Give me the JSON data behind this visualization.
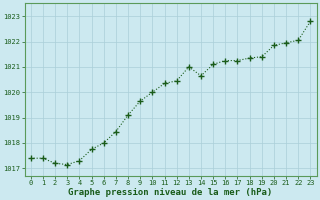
{
  "x": [
    0,
    1,
    2,
    3,
    4,
    5,
    6,
    7,
    8,
    9,
    10,
    11,
    12,
    13,
    14,
    15,
    16,
    17,
    18,
    19,
    20,
    21,
    22,
    23
  ],
  "y": [
    1017.4,
    1017.4,
    1017.2,
    1017.15,
    1017.3,
    1017.75,
    1018.0,
    1018.45,
    1019.1,
    1019.65,
    1020.0,
    1020.35,
    1020.45,
    1021.0,
    1020.65,
    1021.1,
    1021.25,
    1021.25,
    1021.35,
    1021.4,
    1021.85,
    1021.95,
    1022.05,
    1022.8
  ],
  "line_color": "#1a5c1a",
  "marker_color": "#1a5c1a",
  "bg_color": "#cce9f0",
  "grid_color": "#aacfd8",
  "xlabel": "Graphe pression niveau de la mer (hPa)",
  "xlabel_color": "#1a5c1a",
  "ylabel_ticks": [
    1017,
    1018,
    1019,
    1020,
    1021,
    1022,
    1023
  ],
  "ylim": [
    1016.7,
    1023.5
  ],
  "xlim": [
    -0.5,
    23.5
  ],
  "tick_color": "#1a5c1a",
  "spine_color": "#5a9a5a",
  "tick_fontsize": 5.0,
  "xlabel_fontsize": 6.5
}
